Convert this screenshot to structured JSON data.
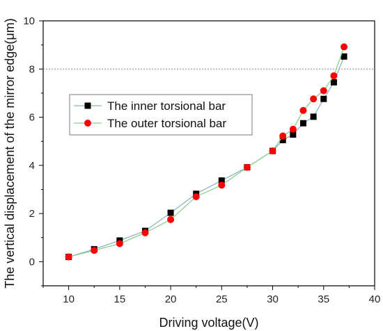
{
  "chart_data": {
    "type": "line",
    "xlabel": "Driving voltage(V)",
    "ylabel": "The vertical displacement of the mirror edge(μm)",
    "xlim": [
      7.5,
      40
    ],
    "ylim": [
      -1,
      10
    ],
    "xticks": [
      10,
      15,
      20,
      25,
      30,
      35,
      40
    ],
    "yticks": [
      0,
      2,
      4,
      6,
      8,
      10
    ],
    "grid": false,
    "reference_line": {
      "y": 8,
      "style": "dotted",
      "color": "#888888"
    },
    "legend_position": "left-middle",
    "series": [
      {
        "name": "The inner torsional bar",
        "marker": "square",
        "marker_color": "#000000",
        "line_color": "#8fb3c8",
        "x": [
          10,
          12.5,
          15,
          17.5,
          20,
          22.5,
          25,
          27.5,
          30,
          31,
          32,
          33,
          34,
          35,
          36,
          37
        ],
        "y": [
          0.2,
          0.52,
          0.88,
          1.28,
          2.03,
          2.82,
          3.37,
          3.92,
          4.6,
          5.05,
          5.28,
          5.75,
          6.02,
          6.76,
          7.45,
          8.52
        ]
      },
      {
        "name": "The outer torsional bar",
        "marker": "circle",
        "marker_color": "#ff0000",
        "line_color": "#8fcf8f",
        "x": [
          10,
          12.5,
          15,
          17.5,
          20,
          22.5,
          25,
          27.5,
          30,
          31,
          32,
          33,
          34,
          35,
          36,
          37
        ],
        "y": [
          0.2,
          0.47,
          0.75,
          1.2,
          1.75,
          2.7,
          3.18,
          3.92,
          4.6,
          5.22,
          5.5,
          6.28,
          6.76,
          7.1,
          7.72,
          8.92
        ]
      }
    ]
  }
}
